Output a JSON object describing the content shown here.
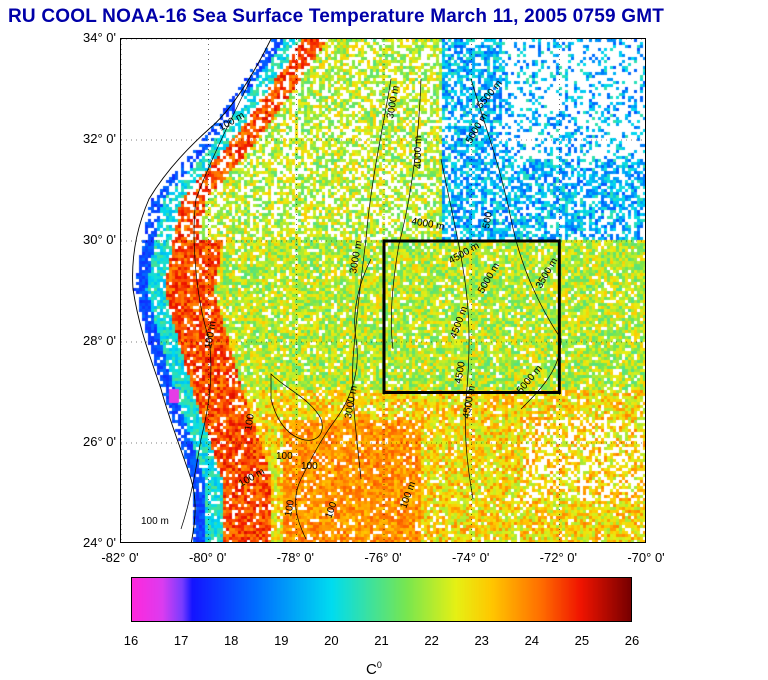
{
  "title": "RU COOL  NOAA-16 Sea Surface Temperature March 11, 2005 0759 GMT",
  "map": {
    "lat_labels": [
      "34° 0'",
      "32° 0'",
      "30° 0'",
      "28° 0'",
      "26° 0'",
      "24° 0'"
    ],
    "lat_values": [
      34,
      32,
      30,
      28,
      26,
      24
    ],
    "lon_labels": [
      "-82° 0'",
      "-80° 0'",
      "-78° 0'",
      "-76° 0'",
      "-74° 0'",
      "-72° 0'",
      "-70° 0'"
    ],
    "lon_values": [
      -82,
      -80,
      -78,
      -76,
      -74,
      -72,
      -70
    ],
    "lat_range": [
      24,
      34
    ],
    "lon_range": [
      -82,
      -70
    ],
    "study_box": {
      "lon": [
        -76,
        -72
      ],
      "lat": [
        27,
        30
      ]
    },
    "contour_labels": [
      "100 m",
      "100 m",
      "100 m",
      "100 m",
      "100",
      "100",
      "100",
      "100",
      "3000 m",
      "3000 m",
      "3000 m",
      "4000 m",
      "4000 m",
      "4500 m",
      "4500 m",
      "4500 m",
      "4500",
      "5000 m",
      "5000 m",
      "5000 m",
      "3500 m",
      "5500 m",
      "500",
      "100 m",
      "100"
    ],
    "sst_colors": {
      "cold_shelf": "#3050ff",
      "shelf_edge": "#00ccee",
      "gulf_stream": "#ff3010",
      "sargasso": "#80e050",
      "cloud": "#ffffff",
      "land": "#ffffff"
    }
  },
  "colorbar": {
    "ticks": [
      "16",
      "17",
      "18",
      "19",
      "20",
      "21",
      "22",
      "23",
      "24",
      "25",
      "26"
    ],
    "tick_values": [
      16,
      17,
      18,
      19,
      20,
      21,
      22,
      23,
      24,
      25,
      26
    ],
    "range": [
      16,
      26
    ],
    "unit": "C",
    "unit_sup": "0"
  }
}
